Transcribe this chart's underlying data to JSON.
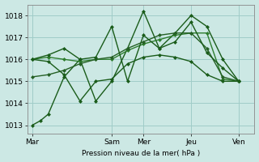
{
  "bg_color": "#cce8e4",
  "grid_color": "#a0ccc8",
  "xlabel": "Pression niveau de la mer( hPa )",
  "ylim": [
    1012.6,
    1018.5
  ],
  "yticks": [
    1013,
    1014,
    1015,
    1016,
    1017,
    1018
  ],
  "xtick_labels": [
    "Mar",
    "Sam",
    "Mer",
    "Jeu",
    "Ven"
  ],
  "xtick_positions": [
    0,
    5,
    7,
    10,
    13
  ],
  "xlim": [
    -0.3,
    14.0
  ],
  "lines": [
    {
      "x": [
        0,
        0.5,
        1,
        2,
        3,
        4,
        5,
        6,
        7,
        8,
        9,
        10,
        11,
        12,
        13
      ],
      "y": [
        1013.0,
        1013.2,
        1013.5,
        1015.2,
        1016.0,
        1014.1,
        1015.0,
        1016.5,
        1018.2,
        1016.5,
        1017.2,
        1018.0,
        1017.5,
        1016.0,
        1015.0
      ],
      "color": "#1a5c1a",
      "lw": 1.0,
      "marker": "D",
      "ms": 2.0,
      "style": "-"
    },
    {
      "x": [
        0,
        1,
        2,
        3,
        4,
        5,
        6,
        7,
        8,
        9,
        10,
        11,
        12,
        13
      ],
      "y": [
        1016.0,
        1016.1,
        1016.0,
        1015.9,
        1016.0,
        1016.0,
        1016.4,
        1016.7,
        1016.9,
        1017.1,
        1017.2,
        1017.2,
        1015.1,
        1015.0
      ],
      "color": "#2e7d2e",
      "lw": 1.0,
      "marker": "D",
      "ms": 2.0,
      "style": "-"
    },
    {
      "x": [
        0,
        1,
        2,
        3,
        4,
        5,
        6,
        7,
        8,
        9,
        10,
        11,
        12,
        13
      ],
      "y": [
        1016.0,
        1015.9,
        1015.3,
        1014.1,
        1015.0,
        1015.1,
        1015.8,
        1016.1,
        1016.2,
        1016.1,
        1015.9,
        1015.3,
        1015.0,
        1015.0
      ],
      "color": "#1a5c1a",
      "lw": 1.0,
      "marker": "D",
      "ms": 2.0,
      "style": "-"
    },
    {
      "x": [
        0,
        1,
        2,
        3,
        4,
        5,
        6,
        7,
        8,
        9,
        10,
        11,
        12,
        13
      ],
      "y": [
        1015.2,
        1015.3,
        1015.5,
        1015.8,
        1016.0,
        1016.1,
        1016.5,
        1016.8,
        1017.1,
        1017.2,
        1017.2,
        1016.5,
        1015.2,
        1015.0
      ],
      "color": "#256025",
      "lw": 1.0,
      "marker": "D",
      "ms": 2.0,
      "style": "-"
    },
    {
      "x": [
        0,
        1,
        2,
        3,
        4,
        5,
        6,
        7,
        8,
        9,
        10,
        11,
        12,
        13
      ],
      "y": [
        1016.0,
        1016.2,
        1016.5,
        1016.0,
        1016.1,
        1017.5,
        1015.0,
        1017.1,
        1016.5,
        1016.8,
        1017.7,
        1016.3,
        1015.6,
        1015.0
      ],
      "color": "#1a5c1a",
      "lw": 1.0,
      "marker": "D",
      "ms": 2.0,
      "style": "-"
    }
  ]
}
